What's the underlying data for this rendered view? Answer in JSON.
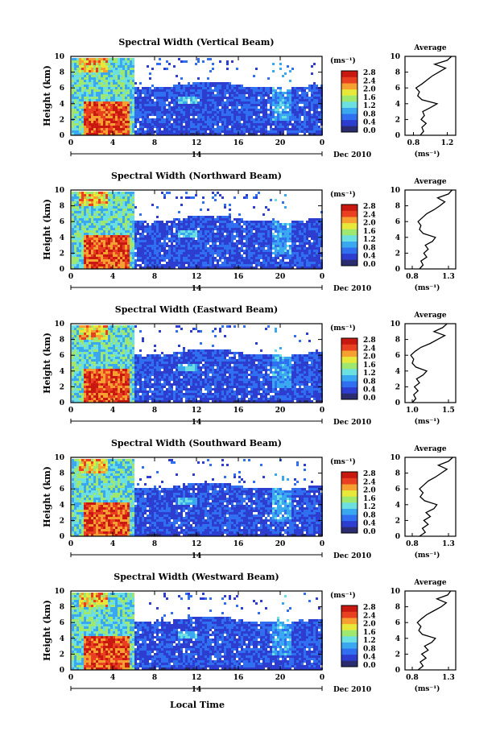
{
  "figure": {
    "xlabel": "Local Time",
    "date_label": "Dec 2010",
    "day_label": "14"
  },
  "colors": {
    "colormap": [
      "#2b2b6f",
      "#2c3dd0",
      "#2f6ff0",
      "#3aa8f0",
      "#6ce0e0",
      "#9ee870",
      "#e8e83a",
      "#f5a030",
      "#e84020",
      "#c81810"
    ]
  },
  "chart_data": [
    {
      "type": "heatmap",
      "title": "Spectral Width (Vertical Beam)",
      "ylabel": "Height (km)",
      "x_ticks": [
        "0",
        "4",
        "8",
        "12",
        "16",
        "20",
        "0"
      ],
      "y_ticks": [
        "0",
        "2",
        "4",
        "6",
        "8",
        "10"
      ],
      "xlim": [
        0,
        24
      ],
      "ylim": [
        0,
        10
      ],
      "colorbar": {
        "unit": "(ms⁻¹)",
        "ticks": [
          "0.0",
          "0.4",
          "0.8",
          "1.2",
          "1.6",
          "2.0",
          "2.4",
          "2.8"
        ]
      },
      "average_profile": {
        "title": "Average",
        "xlabel": "(ms⁻¹)",
        "x_ticks": [
          "0.8",
          "1.2"
        ],
        "xlim": [
          0.7,
          1.3
        ],
        "y_ticks": [
          "0",
          "2",
          "4",
          "6",
          "8",
          "10"
        ],
        "heights": [
          0,
          0.5,
          1,
          1.5,
          2,
          2.5,
          3,
          3.5,
          4,
          4.5,
          5,
          5.5,
          6,
          6.5,
          7,
          7.5,
          8,
          8.5,
          9,
          9.5,
          10
        ],
        "values": [
          0.88,
          0.92,
          0.9,
          0.95,
          0.89,
          0.93,
          0.91,
          1.0,
          1.08,
          0.9,
          0.85,
          0.87,
          0.83,
          0.9,
          0.96,
          1.02,
          1.1,
          1.18,
          1.05,
          1.2,
          1.25
        ]
      }
    },
    {
      "type": "heatmap",
      "title": "Spectral Width (Northward Beam)",
      "ylabel": "Height (km)",
      "x_ticks": [
        "0",
        "4",
        "8",
        "12",
        "16",
        "20",
        "0"
      ],
      "y_ticks": [
        "0",
        "2",
        "4",
        "6",
        "8",
        "10"
      ],
      "xlim": [
        0,
        24
      ],
      "ylim": [
        0,
        10
      ],
      "colorbar": {
        "unit": "(ms⁻¹)",
        "ticks": [
          "0.0",
          "0.4",
          "0.8",
          "1.2",
          "1.6",
          "2.0",
          "2.4",
          "2.8"
        ]
      },
      "average_profile": {
        "title": "Average",
        "xlabel": "(ms⁻¹)",
        "x_ticks": [
          "0.8",
          "1.3"
        ],
        "xlim": [
          0.7,
          1.4
        ],
        "y_ticks": [
          "0",
          "2",
          "4",
          "6",
          "8",
          "10"
        ],
        "heights": [
          0,
          0.5,
          1,
          1.5,
          2,
          2.5,
          3,
          3.5,
          4,
          4.5,
          5,
          5.5,
          6,
          6.5,
          7,
          7.5,
          8,
          8.5,
          9,
          9.5,
          10
        ],
        "values": [
          0.9,
          0.95,
          0.92,
          1.0,
          0.96,
          1.02,
          0.98,
          1.08,
          1.12,
          0.95,
          0.9,
          0.92,
          0.88,
          0.94,
          1.0,
          1.1,
          1.18,
          1.25,
          1.15,
          1.3,
          1.35
        ]
      }
    },
    {
      "type": "heatmap",
      "title": "Spectral Width (Eastward Beam)",
      "ylabel": "Height (km)",
      "x_ticks": [
        "0",
        "4",
        "8",
        "12",
        "16",
        "20",
        "0"
      ],
      "y_ticks": [
        "0",
        "2",
        "4",
        "6",
        "8",
        "10"
      ],
      "xlim": [
        0,
        24
      ],
      "ylim": [
        0,
        10
      ],
      "colorbar": {
        "unit": "(ms⁻¹)",
        "ticks": [
          "0.0",
          "0.4",
          "0.8",
          "1.2",
          "1.6",
          "2.0",
          "2.4",
          "2.8"
        ]
      },
      "average_profile": {
        "title": "Average",
        "xlabel": "(ms⁻¹)",
        "x_ticks": [
          "1.0",
          "1.5"
        ],
        "xlim": [
          0.9,
          1.6
        ],
        "y_ticks": [
          "0",
          "2",
          "4",
          "6",
          "8",
          "10"
        ],
        "heights": [
          0,
          0.5,
          1,
          1.5,
          2,
          2.5,
          3,
          3.5,
          4,
          4.5,
          5,
          5.5,
          6,
          6.5,
          7,
          7.5,
          8,
          8.5,
          9,
          9.5,
          10
        ],
        "values": [
          1.0,
          1.05,
          1.02,
          1.08,
          1.03,
          1.1,
          1.06,
          1.15,
          1.2,
          1.05,
          1.0,
          1.02,
          0.98,
          1.04,
          1.12,
          1.25,
          1.35,
          1.45,
          1.3,
          1.42,
          1.48
        ]
      }
    },
    {
      "type": "heatmap",
      "title": "Spectral Width (Southward Beam)",
      "ylabel": "Height (km)",
      "x_ticks": [
        "0",
        "4",
        "8",
        "12",
        "16",
        "20",
        "0"
      ],
      "y_ticks": [
        "0",
        "2",
        "4",
        "6",
        "8",
        "10"
      ],
      "xlim": [
        0,
        24
      ],
      "ylim": [
        0,
        10
      ],
      "colorbar": {
        "unit": "(ms⁻¹)",
        "ticks": [
          "0.0",
          "0.4",
          "0.8",
          "1.2",
          "1.6",
          "2.0",
          "2.4",
          "2.8"
        ]
      },
      "average_profile": {
        "title": "Average",
        "xlabel": "(ms⁻¹)",
        "x_ticks": [
          "0.8",
          "1.3"
        ],
        "xlim": [
          0.7,
          1.4
        ],
        "y_ticks": [
          "0",
          "2",
          "4",
          "6",
          "8",
          "10"
        ],
        "heights": [
          0,
          0.5,
          1,
          1.5,
          2,
          2.5,
          3,
          3.5,
          4,
          4.5,
          5,
          5.5,
          6,
          6.5,
          7,
          7.5,
          8,
          8.5,
          9,
          9.5,
          10
        ],
        "values": [
          0.9,
          0.98,
          0.94,
          1.02,
          0.96,
          1.05,
          0.99,
          1.1,
          1.14,
          0.97,
          0.91,
          0.95,
          0.9,
          0.96,
          1.02,
          1.12,
          1.2,
          1.28,
          1.16,
          1.3,
          1.36
        ]
      }
    },
    {
      "type": "heatmap",
      "title": "Spectral Width (Westward Beam)",
      "ylabel": "Height (km)",
      "x_ticks": [
        "0",
        "4",
        "8",
        "12",
        "16",
        "20",
        "0"
      ],
      "y_ticks": [
        "0",
        "2",
        "4",
        "6",
        "8",
        "10"
      ],
      "xlim": [
        0,
        24
      ],
      "ylim": [
        0,
        10
      ],
      "colorbar": {
        "unit": "(ms⁻¹)",
        "ticks": [
          "0.0",
          "0.4",
          "0.8",
          "1.2",
          "1.6",
          "2.0",
          "2.4",
          "2.8"
        ]
      },
      "average_profile": {
        "title": "Average",
        "xlabel": "(ms⁻¹)",
        "x_ticks": [
          "0.8",
          "1.3"
        ],
        "xlim": [
          0.7,
          1.4
        ],
        "y_ticks": [
          "0",
          "2",
          "4",
          "6",
          "8",
          "10"
        ],
        "heights": [
          0,
          0.5,
          1,
          1.5,
          2,
          2.5,
          3,
          3.5,
          4,
          4.5,
          5,
          5.5,
          6,
          6.5,
          7,
          7.5,
          8,
          8.5,
          9,
          9.5,
          10
        ],
        "values": [
          0.88,
          0.95,
          0.91,
          0.99,
          0.93,
          1.02,
          0.97,
          1.07,
          1.12,
          0.94,
          0.89,
          0.92,
          0.87,
          0.93,
          1.0,
          1.1,
          1.2,
          1.27,
          1.14,
          1.29,
          1.33
        ]
      }
    }
  ]
}
